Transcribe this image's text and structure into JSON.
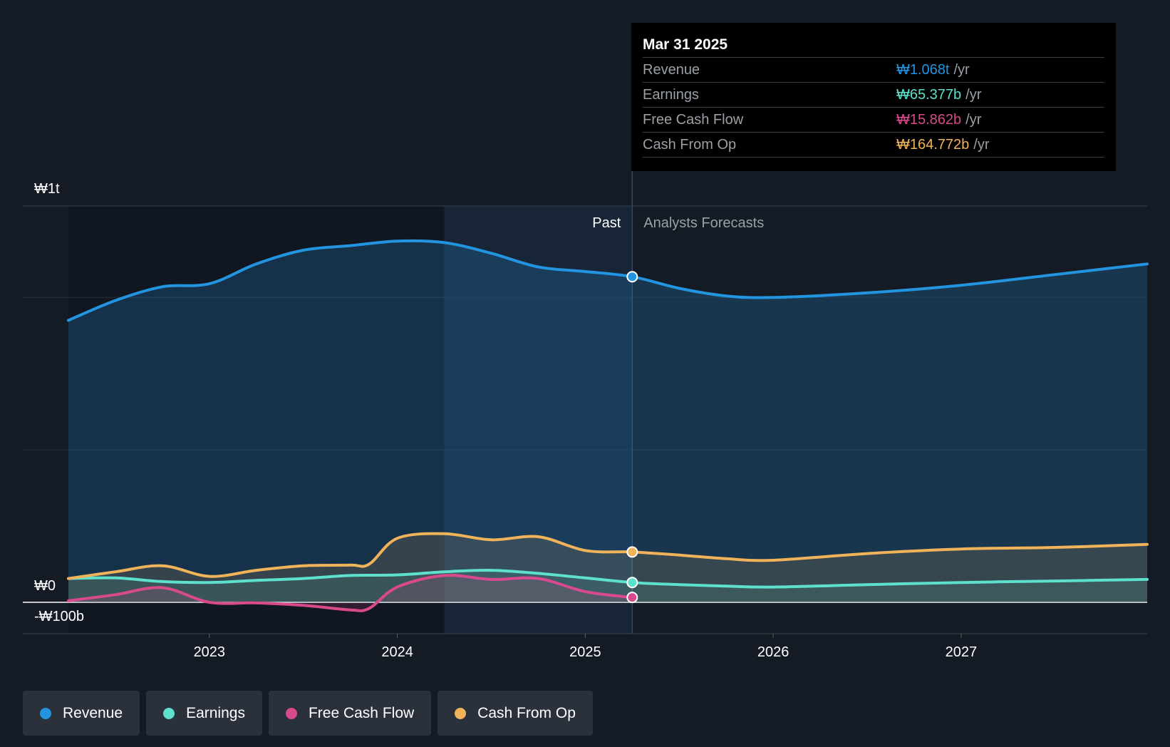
{
  "chart_data": {
    "type": "area",
    "currency_note": "KRW",
    "y_axis": {
      "label_top": "₩1t",
      "label_zero": "₩0",
      "label_bottom": "-₩100b",
      "ylim": [
        -100,
        1300
      ]
    },
    "x_axis": {
      "ticks": [
        "2023",
        "2024",
        "2025",
        "2026",
        "2027"
      ],
      "xlim": [
        2022.25,
        2027.99
      ]
    },
    "regions": {
      "past_label": "Past",
      "forecast_label": "Analysts Forecasts",
      "divider_x": 2025.25,
      "highlight_start": 2024.25
    },
    "series": [
      {
        "name": "Revenue",
        "color": "#2394e0",
        "x": [
          2022.25,
          2022.5,
          2022.75,
          2023.0,
          2023.25,
          2023.5,
          2023.75,
          2024.0,
          2024.25,
          2024.5,
          2024.75,
          2025.0,
          2025.25,
          2025.5,
          2025.75,
          2026.0,
          2026.5,
          2027.0,
          2027.5,
          2027.99
        ],
        "values": [
          925,
          990,
          1035,
          1045,
          1110,
          1155,
          1170,
          1185,
          1180,
          1145,
          1100,
          1085,
          1068,
          1030,
          1005,
          1000,
          1015,
          1040,
          1075,
          1110
        ]
      },
      {
        "name": "Earnings",
        "color": "#5de0cc",
        "x": [
          2022.25,
          2022.5,
          2022.75,
          2023.0,
          2023.25,
          2023.5,
          2023.75,
          2024.0,
          2024.25,
          2024.5,
          2024.75,
          2025.0,
          2025.25,
          2025.5,
          2025.75,
          2026.0,
          2026.5,
          2027.0,
          2027.5,
          2027.99
        ],
        "values": [
          78,
          80,
          68,
          65,
          72,
          78,
          88,
          90,
          100,
          105,
          95,
          80,
          65,
          58,
          53,
          50,
          58,
          65,
          70,
          75
        ]
      },
      {
        "name": "Free Cash Flow",
        "color": "#d94a8c",
        "x": [
          2022.25,
          2022.5,
          2022.75,
          2023.0,
          2023.25,
          2023.5,
          2023.75,
          2023.85,
          2024.0,
          2024.25,
          2024.5,
          2024.75,
          2025.0,
          2025.25
        ],
        "values": [
          5,
          25,
          48,
          0,
          -2,
          -10,
          -25,
          -20,
          50,
          88,
          75,
          78,
          35,
          16
        ]
      },
      {
        "name": "Cash From Op",
        "color": "#f0b35a",
        "x": [
          2022.25,
          2022.5,
          2022.75,
          2023.0,
          2023.25,
          2023.5,
          2023.75,
          2023.85,
          2024.0,
          2024.25,
          2024.5,
          2024.75,
          2025.0,
          2025.25,
          2025.5,
          2025.75,
          2026.0,
          2026.5,
          2027.0,
          2027.5,
          2027.99
        ],
        "values": [
          78,
          100,
          120,
          85,
          105,
          120,
          122,
          125,
          210,
          225,
          205,
          215,
          170,
          165,
          155,
          143,
          138,
          160,
          175,
          180,
          190
        ]
      }
    ]
  },
  "tooltip": {
    "date": "Mar 31 2025",
    "rows": [
      {
        "name": "Revenue",
        "value": "₩1.068t",
        "unit": "/yr",
        "color": "#2394e0"
      },
      {
        "name": "Earnings",
        "value": "₩65.377b",
        "unit": "/yr",
        "color": "#5de0cc"
      },
      {
        "name": "Free Cash Flow",
        "value": "₩15.862b",
        "unit": "/yr",
        "color": "#d94a8c"
      },
      {
        "name": "Cash From Op",
        "value": "₩164.772b",
        "unit": "/yr",
        "color": "#f0b35a"
      }
    ]
  },
  "legend": [
    {
      "label": "Revenue",
      "color": "#2394e0"
    },
    {
      "label": "Earnings",
      "color": "#5de0cc"
    },
    {
      "label": "Free Cash Flow",
      "color": "#d94a8c"
    },
    {
      "label": "Cash From Op",
      "color": "#f0b35a"
    }
  ]
}
